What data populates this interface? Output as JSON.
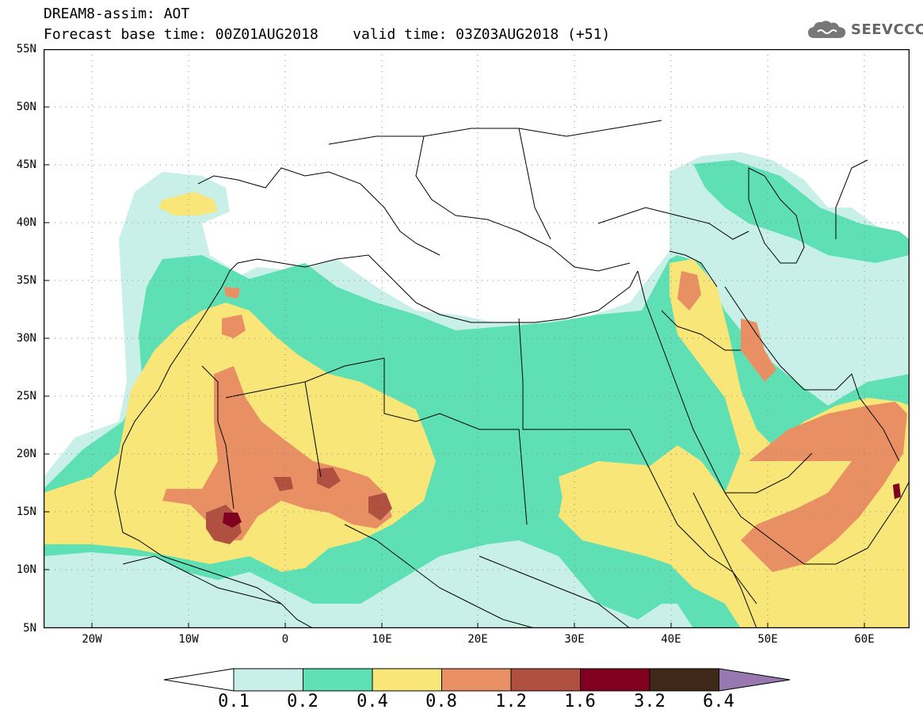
{
  "header": {
    "title_line1": "DREAM8-assim: AOT",
    "title_line2": "Forecast base time: 00Z01AUG2018    valid time: 03Z03AUG2018 (+51)"
  },
  "logo": {
    "text": "SEEVCCC",
    "icon": "cloud-icon",
    "color": "#666666"
  },
  "axes": {
    "lat_labels": [
      "55N",
      "50N",
      "45N",
      "40N",
      "35N",
      "30N",
      "25N",
      "20N",
      "15N",
      "10N",
      "5N"
    ],
    "lon_labels": [
      "20W",
      "10W",
      "0",
      "10E",
      "20E",
      "30E",
      "40E",
      "50E",
      "60E"
    ]
  },
  "colorbar": {
    "labels": [
      "0.1",
      "0.2",
      "0.4",
      "0.8",
      "1.2",
      "1.6",
      "3.2",
      "6.4"
    ],
    "colors": [
      "#ffffff",
      "#c8f0e8",
      "#5ee0b4",
      "#f8e678",
      "#e89064",
      "#b05040",
      "#800020",
      "#402818",
      "#9878b0"
    ]
  },
  "map": {
    "type": "dust aerosol optical thickness forecast",
    "region": "North Africa, Middle East, Europe"
  }
}
